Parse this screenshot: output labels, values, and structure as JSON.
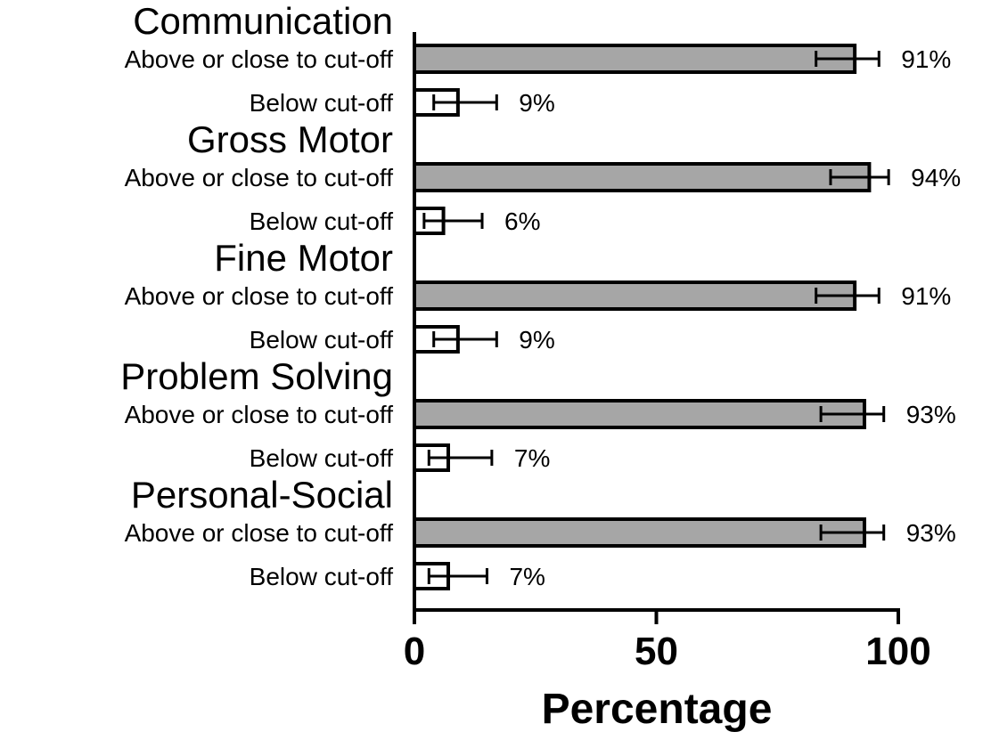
{
  "chart_data": {
    "type": "bar",
    "orientation": "horizontal",
    "xlabel": "Percentage",
    "xlim": [
      0,
      100
    ],
    "xticks": [
      0,
      50,
      100
    ],
    "grid": false,
    "colors": {
      "above": "#a6a6a6",
      "below": "#ffffff",
      "stroke": "#000000"
    },
    "groups": [
      {
        "title": "Communication",
        "bars": [
          {
            "label": "Above or close to cut-off",
            "kind": "above",
            "value": 91,
            "value_label": "91%",
            "err_low": 83,
            "err_high": 96
          },
          {
            "label": "Below cut-off",
            "kind": "below",
            "value": 9,
            "value_label": "9%",
            "err_low": 4,
            "err_high": 17
          }
        ]
      },
      {
        "title": "Gross Motor",
        "bars": [
          {
            "label": "Above or close to cut-off",
            "kind": "above",
            "value": 94,
            "value_label": "94%",
            "err_low": 86,
            "err_high": 98
          },
          {
            "label": "Below cut-off",
            "kind": "below",
            "value": 6,
            "value_label": "6%",
            "err_low": 2,
            "err_high": 14
          }
        ]
      },
      {
        "title": "Fine Motor",
        "bars": [
          {
            "label": "Above or close to cut-off",
            "kind": "above",
            "value": 91,
            "value_label": "91%",
            "err_low": 83,
            "err_high": 96
          },
          {
            "label": "Below cut-off",
            "kind": "below",
            "value": 9,
            "value_label": "9%",
            "err_low": 4,
            "err_high": 17
          }
        ]
      },
      {
        "title": "Problem Solving",
        "bars": [
          {
            "label": "Above or close to cut-off",
            "kind": "above",
            "value": 93,
            "value_label": "93%",
            "err_low": 84,
            "err_high": 97
          },
          {
            "label": "Below cut-off",
            "kind": "below",
            "value": 7,
            "value_label": "7%",
            "err_low": 3,
            "err_high": 16
          }
        ]
      },
      {
        "title": "Personal-Social",
        "bars": [
          {
            "label": "Above or close to cut-off",
            "kind": "above",
            "value": 93,
            "value_label": "93%",
            "err_low": 84,
            "err_high": 97
          },
          {
            "label": "Below cut-off",
            "kind": "below",
            "value": 7,
            "value_label": "7%",
            "err_low": 3,
            "err_high": 15
          }
        ]
      }
    ]
  }
}
